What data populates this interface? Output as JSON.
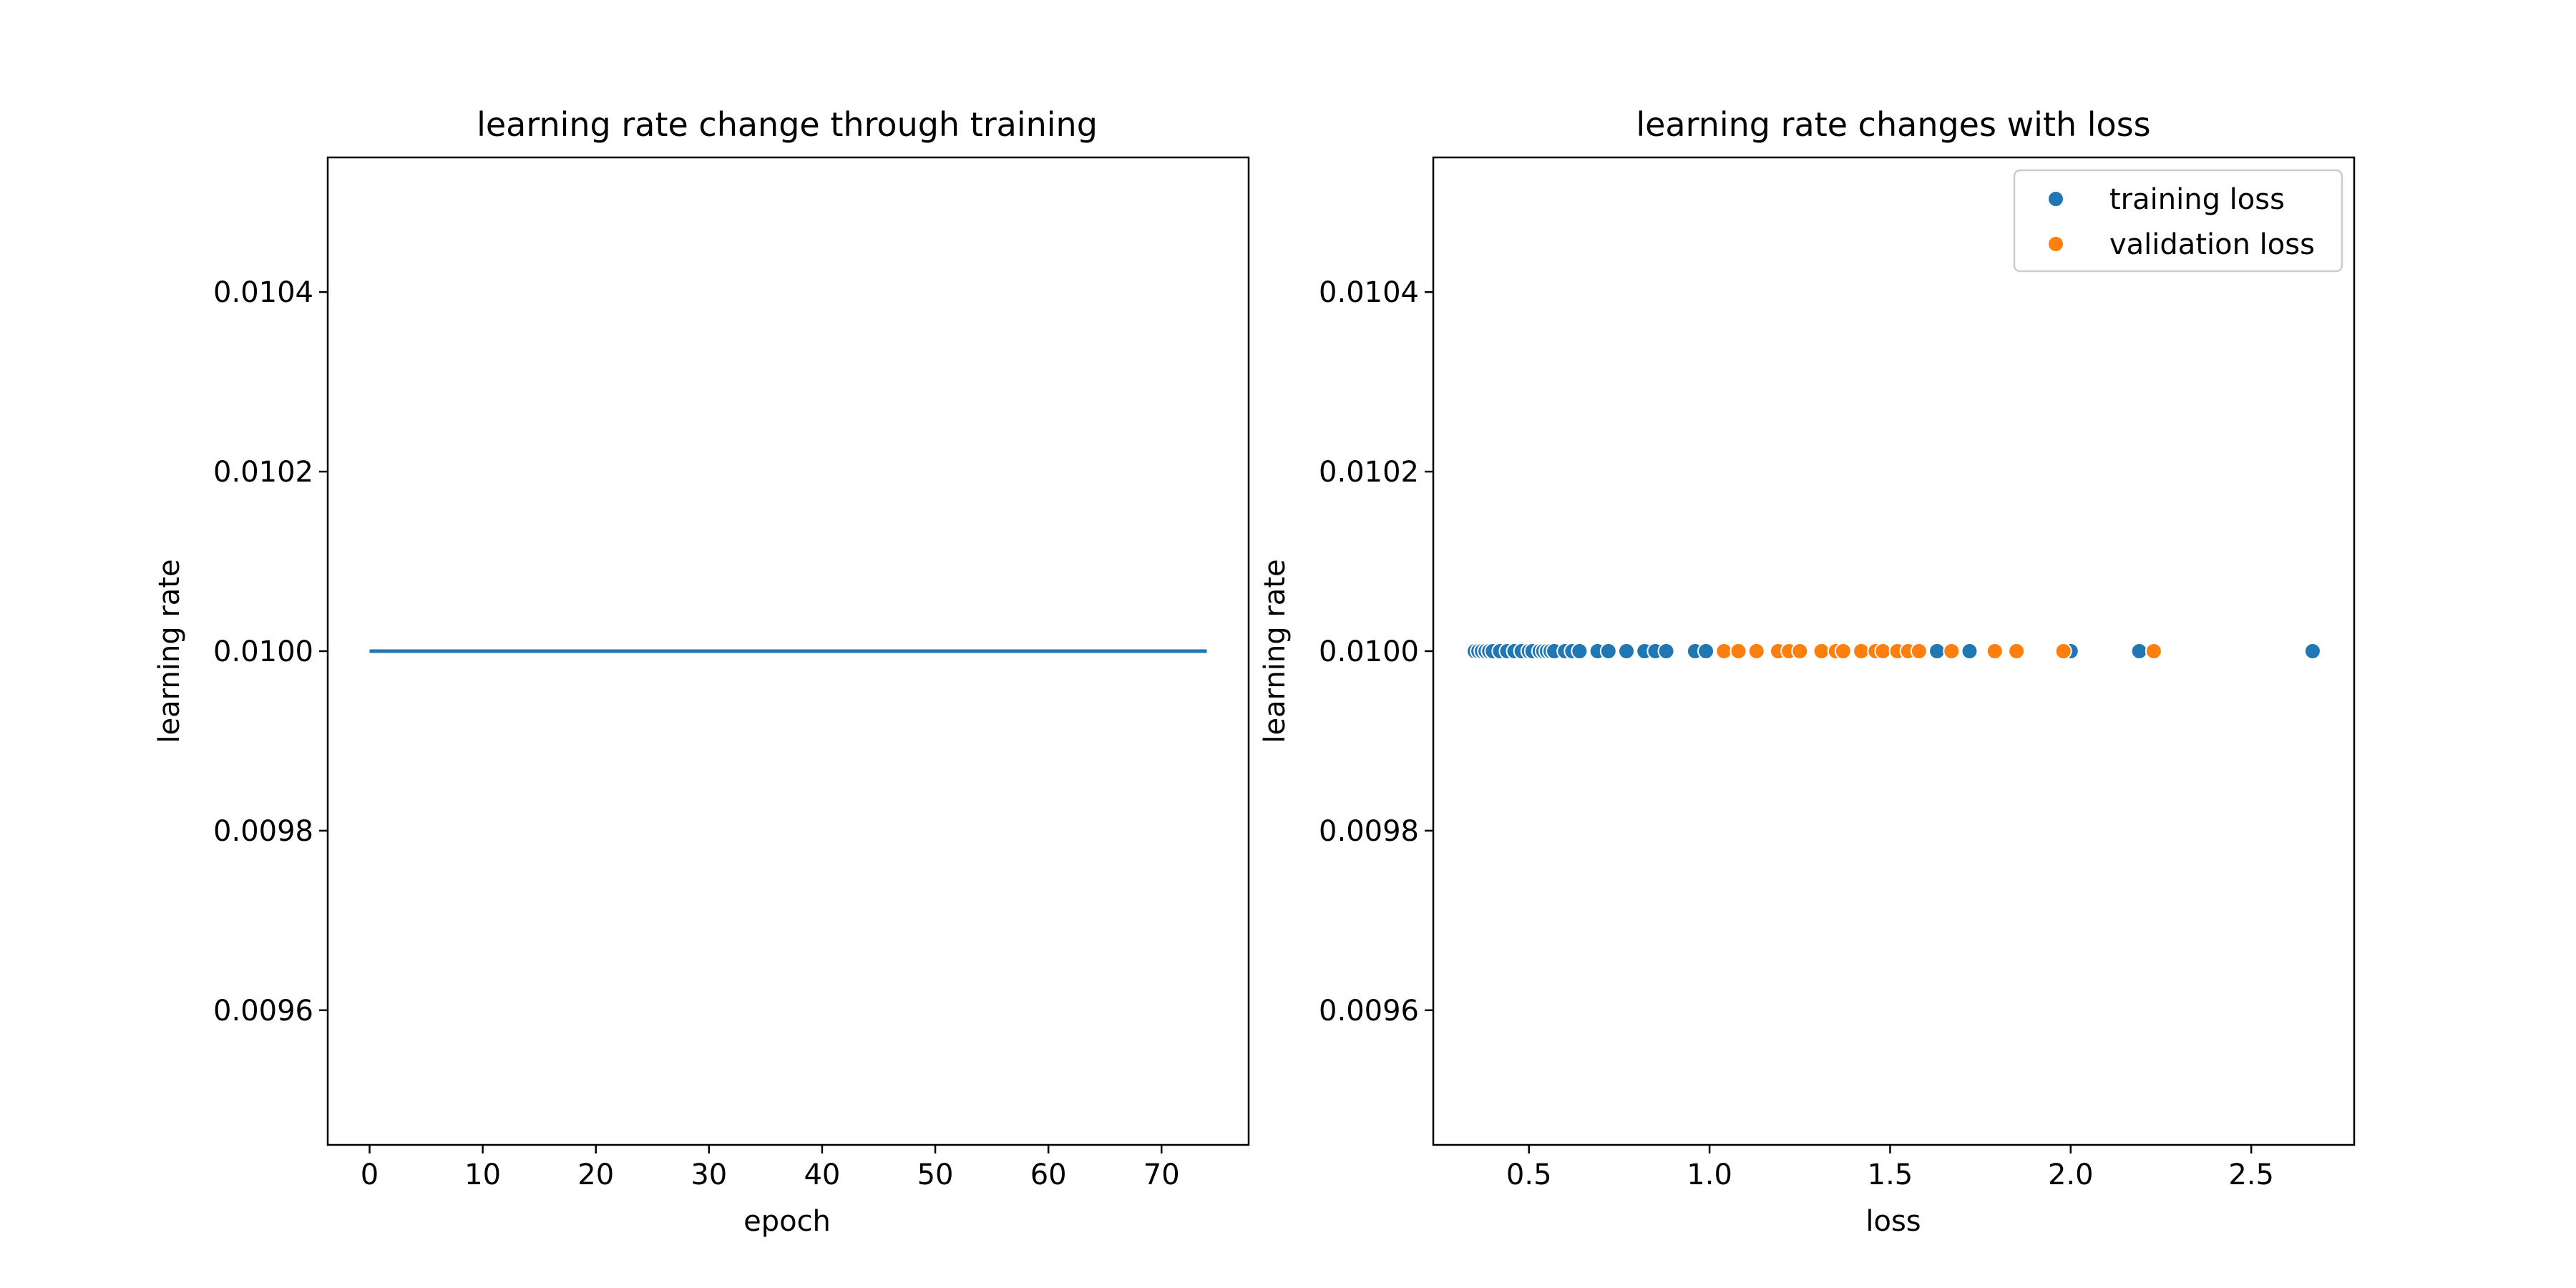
{
  "chart_data": [
    {
      "type": "line",
      "title": "learning rate change through training",
      "xlabel": "epoch",
      "ylabel": "learning rate",
      "xlim": [
        -3.7,
        77.7
      ],
      "ylim": [
        0.00945,
        0.01055
      ],
      "x_ticks": [
        0,
        10,
        20,
        30,
        40,
        50,
        60,
        70
      ],
      "x_tick_labels": [
        "0",
        "10",
        "20",
        "30",
        "40",
        "50",
        "60",
        "70"
      ],
      "y_ticks": [
        0.0096,
        0.0098,
        0.01,
        0.0102,
        0.0104
      ],
      "y_tick_labels": [
        "0.0096",
        "0.0098",
        "0.0100",
        "0.0102",
        "0.0104"
      ],
      "grid": false,
      "series": [
        {
          "color": "#1f77b4",
          "x": [
            0,
            74
          ],
          "y": [
            0.01,
            0.01
          ]
        }
      ]
    },
    {
      "type": "scatter",
      "title": "learning rate changes with loss",
      "xlabel": "loss",
      "ylabel": "learning rate",
      "xlim": [
        0.235,
        2.785
      ],
      "ylim": [
        0.00945,
        0.01055
      ],
      "x_ticks": [
        0.5,
        1.0,
        1.5,
        2.0,
        2.5
      ],
      "x_tick_labels": [
        "0.5",
        "1.0",
        "1.5",
        "2.0",
        "2.5"
      ],
      "y_ticks": [
        0.0096,
        0.0098,
        0.01,
        0.0102,
        0.0104
      ],
      "y_tick_labels": [
        "0.0096",
        "0.0098",
        "0.0100",
        "0.0102",
        "0.0104"
      ],
      "grid": false,
      "legend_position": "top-right",
      "series": [
        {
          "name": "training loss",
          "color": "#1f77b4",
          "x": [
            0.35,
            0.36,
            0.37,
            0.38,
            0.39,
            0.4,
            0.42,
            0.44,
            0.46,
            0.48,
            0.5,
            0.51,
            0.53,
            0.54,
            0.55,
            0.56,
            0.57,
            0.6,
            0.62,
            0.64,
            0.69,
            0.72,
            0.77,
            0.82,
            0.85,
            0.88,
            0.96,
            0.99,
            1.63,
            1.72,
            2.0,
            2.19,
            2.67
          ],
          "y": [
            0.01,
            0.01,
            0.01,
            0.01,
            0.01,
            0.01,
            0.01,
            0.01,
            0.01,
            0.01,
            0.01,
            0.01,
            0.01,
            0.01,
            0.01,
            0.01,
            0.01,
            0.01,
            0.01,
            0.01,
            0.01,
            0.01,
            0.01,
            0.01,
            0.01,
            0.01,
            0.01,
            0.01,
            0.01,
            0.01,
            0.01,
            0.01,
            0.01
          ]
        },
        {
          "name": "validation loss",
          "color": "#ff7f0e",
          "x": [
            1.04,
            1.08,
            1.13,
            1.19,
            1.22,
            1.25,
            1.31,
            1.35,
            1.37,
            1.42,
            1.46,
            1.48,
            1.52,
            1.55,
            1.58,
            1.67,
            1.79,
            1.85,
            1.98,
            2.23
          ],
          "y": [
            0.01,
            0.01,
            0.01,
            0.01,
            0.01,
            0.01,
            0.01,
            0.01,
            0.01,
            0.01,
            0.01,
            0.01,
            0.01,
            0.01,
            0.01,
            0.01,
            0.01,
            0.01,
            0.01,
            0.01
          ]
        }
      ]
    }
  ]
}
